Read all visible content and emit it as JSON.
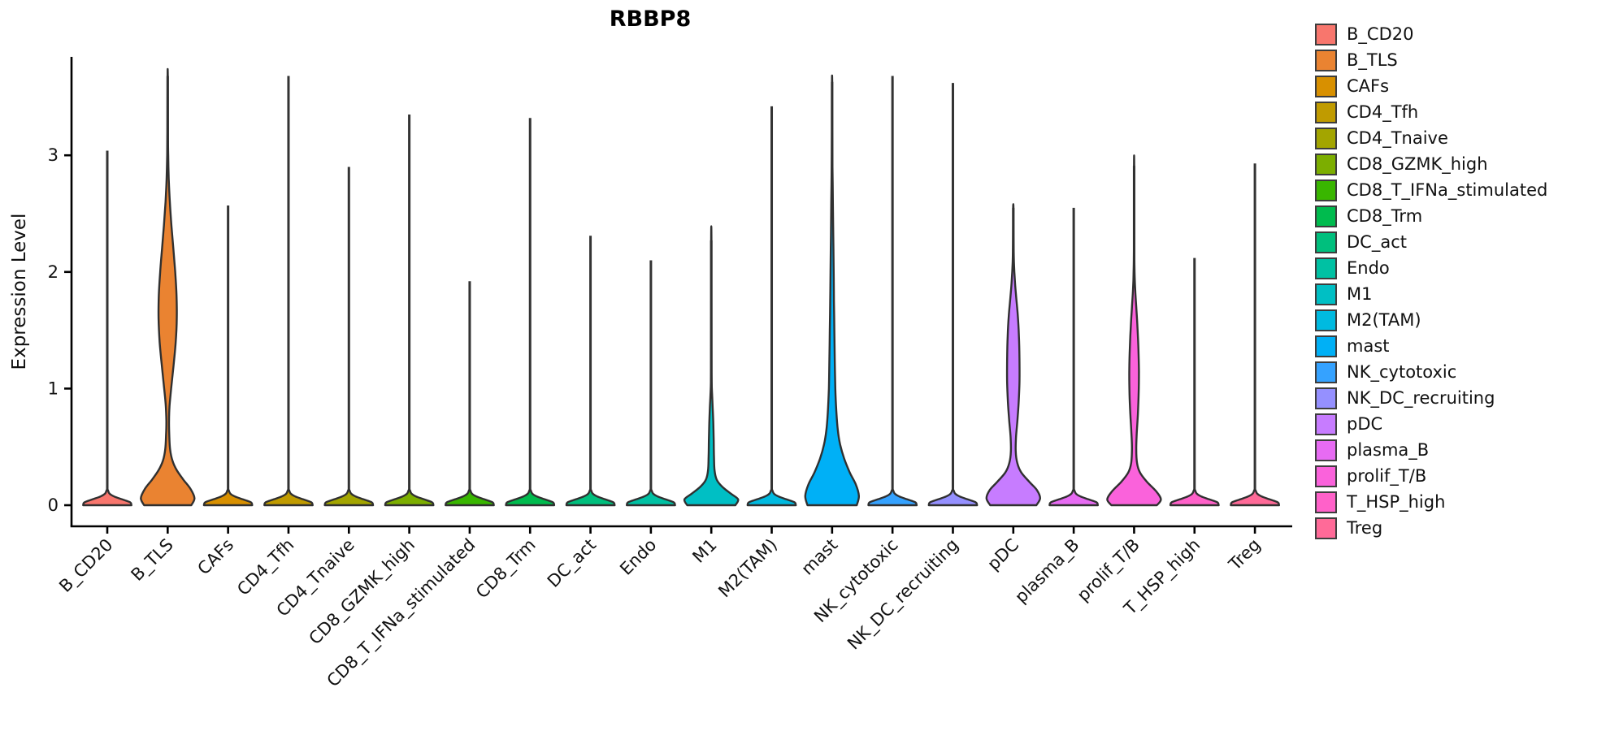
{
  "chart_data": {
    "type": "violin",
    "title": "RBBP8",
    "xlabel": "",
    "ylabel": "Expression Level",
    "yticks": [
      0,
      1,
      2,
      3
    ],
    "ylim": [
      -0.06,
      3.84
    ],
    "grid": false,
    "legend_position": "right",
    "categories": [
      "B_CD20",
      "B_TLS",
      "CAFs",
      "CD4_Tfh",
      "CD4_Tnaive",
      "CD8_GZMK_high",
      "CD8_T_IFNa_stimulated",
      "CD8_Trm",
      "DC_act",
      "Endo",
      "M1",
      "M2(TAM)",
      "mast",
      "NK_cytotoxic",
      "NK_DC_recruiting",
      "pDC",
      "plasma_B",
      "prolif_T/B",
      "T_HSP_high",
      "Treg"
    ],
    "flat_profile": [
      [
        0,
        0.9
      ],
      [
        0.025,
        0.85
      ],
      [
        0.05,
        0.55
      ],
      [
        0.075,
        0.25
      ],
      [
        0.1,
        0.08
      ],
      [
        0.13,
        0.02
      ]
    ],
    "series": [
      {
        "name": "B_CD20",
        "color": "#F8766D",
        "max_expression": 3.04
      },
      {
        "name": "B_TLS",
        "color": "#EA8331",
        "max_expression": 3.68,
        "violin_profile": [
          [
            0,
            0.88
          ],
          [
            0.06,
            1.0
          ],
          [
            0.14,
            0.85
          ],
          [
            0.22,
            0.58
          ],
          [
            0.3,
            0.34
          ],
          [
            0.38,
            0.18
          ],
          [
            0.48,
            0.09
          ],
          [
            0.6,
            0.06
          ],
          [
            0.72,
            0.05
          ],
          [
            0.85,
            0.07
          ],
          [
            1.0,
            0.13
          ],
          [
            1.2,
            0.22
          ],
          [
            1.4,
            0.3
          ],
          [
            1.6,
            0.34
          ],
          [
            1.8,
            0.33
          ],
          [
            2.0,
            0.28
          ],
          [
            2.2,
            0.21
          ],
          [
            2.4,
            0.14
          ],
          [
            2.6,
            0.08
          ],
          [
            2.8,
            0.04
          ],
          [
            3.0,
            0.02
          ],
          [
            3.2,
            0.01
          ],
          [
            3.68,
            0.005
          ]
        ]
      },
      {
        "name": "CAFs",
        "color": "#D89000",
        "max_expression": 2.57
      },
      {
        "name": "CD4_Tfh",
        "color": "#C09B00",
        "max_expression": 3.68
      },
      {
        "name": "CD4_Tnaive",
        "color": "#A3A500",
        "max_expression": 2.9
      },
      {
        "name": "CD8_GZMK_high",
        "color": "#7CAE00",
        "max_expression": 3.35
      },
      {
        "name": "CD8_T_IFNa_stimulated",
        "color": "#39B600",
        "max_expression": 1.92
      },
      {
        "name": "CD8_Trm",
        "color": "#00BB4E",
        "max_expression": 3.32
      },
      {
        "name": "DC_act",
        "color": "#00BF7D",
        "max_expression": 2.31
      },
      {
        "name": "Endo",
        "color": "#00C1A3",
        "max_expression": 2.1
      },
      {
        "name": "M1",
        "color": "#00BFC4",
        "max_expression": 2.27,
        "violin_profile": [
          [
            0,
            0.9
          ],
          [
            0.05,
            1.0
          ],
          [
            0.1,
            0.72
          ],
          [
            0.16,
            0.4
          ],
          [
            0.22,
            0.2
          ],
          [
            0.3,
            0.12
          ],
          [
            0.42,
            0.1
          ],
          [
            0.55,
            0.09
          ],
          [
            0.7,
            0.075
          ],
          [
            0.85,
            0.05
          ],
          [
            0.95,
            0.03
          ],
          [
            1.05,
            0.015
          ],
          [
            1.3,
            0.008
          ],
          [
            2.27,
            0.005
          ]
        ]
      },
      {
        "name": "M2(TAM)",
        "color": "#00BAE0",
        "max_expression": 3.42
      },
      {
        "name": "mast",
        "color": "#00B0F6",
        "max_expression": 3.63,
        "violin_profile": [
          [
            0,
            0.92
          ],
          [
            0.08,
            1.0
          ],
          [
            0.18,
            0.88
          ],
          [
            0.28,
            0.66
          ],
          [
            0.4,
            0.45
          ],
          [
            0.52,
            0.3
          ],
          [
            0.65,
            0.21
          ],
          [
            0.8,
            0.16
          ],
          [
            1.0,
            0.12
          ],
          [
            1.25,
            0.1
          ],
          [
            1.5,
            0.085
          ],
          [
            1.75,
            0.07
          ],
          [
            2.0,
            0.06
          ],
          [
            2.3,
            0.045
          ],
          [
            2.6,
            0.03
          ],
          [
            2.9,
            0.015
          ],
          [
            3.2,
            0.008
          ],
          [
            3.63,
            0.005
          ]
        ]
      },
      {
        "name": "NK_cytotoxic",
        "color": "#35A2FF",
        "max_expression": 3.68
      },
      {
        "name": "NK_DC_recruiting",
        "color": "#9590FF",
        "max_expression": 3.62
      },
      {
        "name": "pDC",
        "color": "#C77CFF",
        "max_expression": 2.55,
        "violin_profile": [
          [
            0,
            0.86
          ],
          [
            0.06,
            1.0
          ],
          [
            0.13,
            0.88
          ],
          [
            0.2,
            0.6
          ],
          [
            0.28,
            0.3
          ],
          [
            0.36,
            0.15
          ],
          [
            0.46,
            0.09
          ],
          [
            0.58,
            0.1
          ],
          [
            0.72,
            0.15
          ],
          [
            0.88,
            0.2
          ],
          [
            1.05,
            0.23
          ],
          [
            1.25,
            0.23
          ],
          [
            1.45,
            0.21
          ],
          [
            1.62,
            0.17
          ],
          [
            1.78,
            0.11
          ],
          [
            1.92,
            0.06
          ],
          [
            2.08,
            0.025
          ],
          [
            2.3,
            0.01
          ],
          [
            2.55,
            0.005
          ]
        ]
      },
      {
        "name": "plasma_B",
        "color": "#E76BF3",
        "max_expression": 2.55
      },
      {
        "name": "prolif_T/B",
        "color": "#FA62DB",
        "max_expression": 2.91,
        "violin_profile": [
          [
            0,
            0.85
          ],
          [
            0.05,
            1.0
          ],
          [
            0.12,
            0.82
          ],
          [
            0.2,
            0.48
          ],
          [
            0.28,
            0.22
          ],
          [
            0.36,
            0.11
          ],
          [
            0.48,
            0.08
          ],
          [
            0.62,
            0.1
          ],
          [
            0.78,
            0.14
          ],
          [
            0.95,
            0.17
          ],
          [
            1.15,
            0.18
          ],
          [
            1.35,
            0.16
          ],
          [
            1.55,
            0.12
          ],
          [
            1.7,
            0.08
          ],
          [
            1.85,
            0.04
          ],
          [
            2.0,
            0.018
          ],
          [
            2.2,
            0.008
          ],
          [
            2.91,
            0.004
          ]
        ]
      },
      {
        "name": "T_HSP_high",
        "color": "#FF61C9",
        "max_expression": 2.12
      },
      {
        "name": "Treg",
        "color": "#FF6A98",
        "max_expression": 2.93
      }
    ]
  }
}
